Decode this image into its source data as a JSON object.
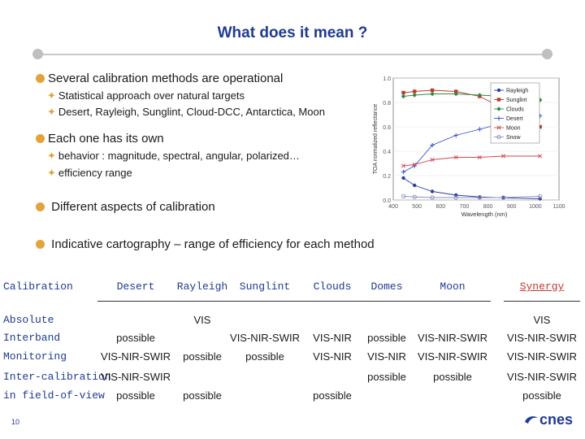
{
  "slide": {
    "title": "What does it mean ?",
    "page_number": "10",
    "logo_text": "cnes"
  },
  "bullets": [
    {
      "text": "Several calibration methods are operational",
      "subs": [
        "Statistical approach over natural targets",
        "Desert, Rayleigh, Sunglint, Cloud-DCC, Antarctica, Moon"
      ]
    },
    {
      "text": "Each one has its own",
      "subs": [
        "behavior : magnitude, spectral, angular, polarized…",
        "efficiency range"
      ]
    },
    {
      "text": "Different aspects of calibration",
      "subs": []
    },
    {
      "text": "Indicative cartography – range of efficiency for each method",
      "subs": []
    }
  ],
  "chart_data": {
    "type": "line",
    "xlabel": "Wavelength (nm)",
    "ylabel": "TOA normalized reflectance",
    "xlim": [
      400,
      1100
    ],
    "ylim": [
      0.0,
      1.0
    ],
    "xticks": [
      "400",
      "500",
      "600",
      "700",
      "800",
      "900",
      "1000",
      "1100"
    ],
    "yticks": [
      "0.0",
      "0.2",
      "0.4",
      "0.6",
      "0.8",
      "1.0"
    ],
    "legend_position": "right",
    "series": [
      {
        "name": "Rayleigh",
        "color": "#2d3ea6",
        "marker": "circle",
        "x": [
          443,
          490,
          565,
          665,
          765,
          865,
          1020
        ],
        "y": [
          0.18,
          0.12,
          0.07,
          0.04,
          0.025,
          0.018,
          0.01
        ]
      },
      {
        "name": "Sunglint",
        "color": "#c0392b",
        "marker": "square",
        "x": [
          443,
          490,
          565,
          665,
          765,
          865,
          1020
        ],
        "y": [
          0.88,
          0.89,
          0.9,
          0.89,
          0.85,
          0.75,
          0.6
        ]
      },
      {
        "name": "Clouds",
        "color": "#2e8b3e",
        "marker": "diamond",
        "x": [
          443,
          490,
          565,
          665,
          765,
          865,
          1020
        ],
        "y": [
          0.85,
          0.86,
          0.87,
          0.87,
          0.86,
          0.85,
          0.82
        ]
      },
      {
        "name": "Desert",
        "color": "#3a4fd0",
        "marker": "plus",
        "x": [
          443,
          490,
          565,
          665,
          765,
          865,
          1020
        ],
        "y": [
          0.23,
          0.28,
          0.45,
          0.53,
          0.58,
          0.63,
          0.69
        ]
      },
      {
        "name": "Moon",
        "color": "#d24a4a",
        "marker": "x",
        "x": [
          443,
          490,
          565,
          665,
          765,
          865,
          1020
        ],
        "y": [
          0.28,
          0.29,
          0.33,
          0.35,
          0.35,
          0.36,
          0.36
        ]
      },
      {
        "name": "Snow",
        "color": "#8a8fc0",
        "marker": "o-open",
        "x": [
          443,
          490,
          565,
          665,
          765,
          865,
          1020
        ],
        "y": [
          0.03,
          0.025,
          0.02,
          0.02,
          0.02,
          0.02,
          0.03
        ]
      }
    ]
  },
  "table": {
    "header_label": "Calibration",
    "columns": [
      "Desert",
      "Rayleigh",
      "Sunglint",
      "Clouds",
      "Domes",
      "Moon",
      "Synergy"
    ],
    "rows": [
      {
        "label": "Absolute",
        "cells": [
          "",
          "VIS",
          "",
          "",
          "",
          "",
          "VIS"
        ]
      },
      {
        "label": "Interband",
        "cells": [
          "possible",
          "",
          "VIS-NIR-SWIR",
          "VIS-NIR",
          "possible",
          "VIS-NIR-SWIR",
          "VIS-NIR-SWIR"
        ]
      },
      {
        "label": "Monitoring",
        "cells": [
          "VIS-NIR-SWIR",
          "possible",
          "possible",
          "VIS-NIR",
          "VIS-NIR",
          "VIS-NIR-SWIR",
          "VIS-NIR-SWIR"
        ]
      },
      {
        "label": "Inter-calibration",
        "cells": [
          "VIS-NIR-SWIR",
          "",
          "",
          "",
          "possible",
          "possible",
          "VIS-NIR-SWIR"
        ]
      },
      {
        "label": "in field-of-view",
        "cells": [
          "possible",
          "possible",
          "",
          "possible",
          "",
          "",
          "possible"
        ]
      }
    ]
  },
  "colors": {
    "title": "#1f3a93",
    "bullet_dot": "#e3a33a",
    "synergy": "#c0392b"
  }
}
